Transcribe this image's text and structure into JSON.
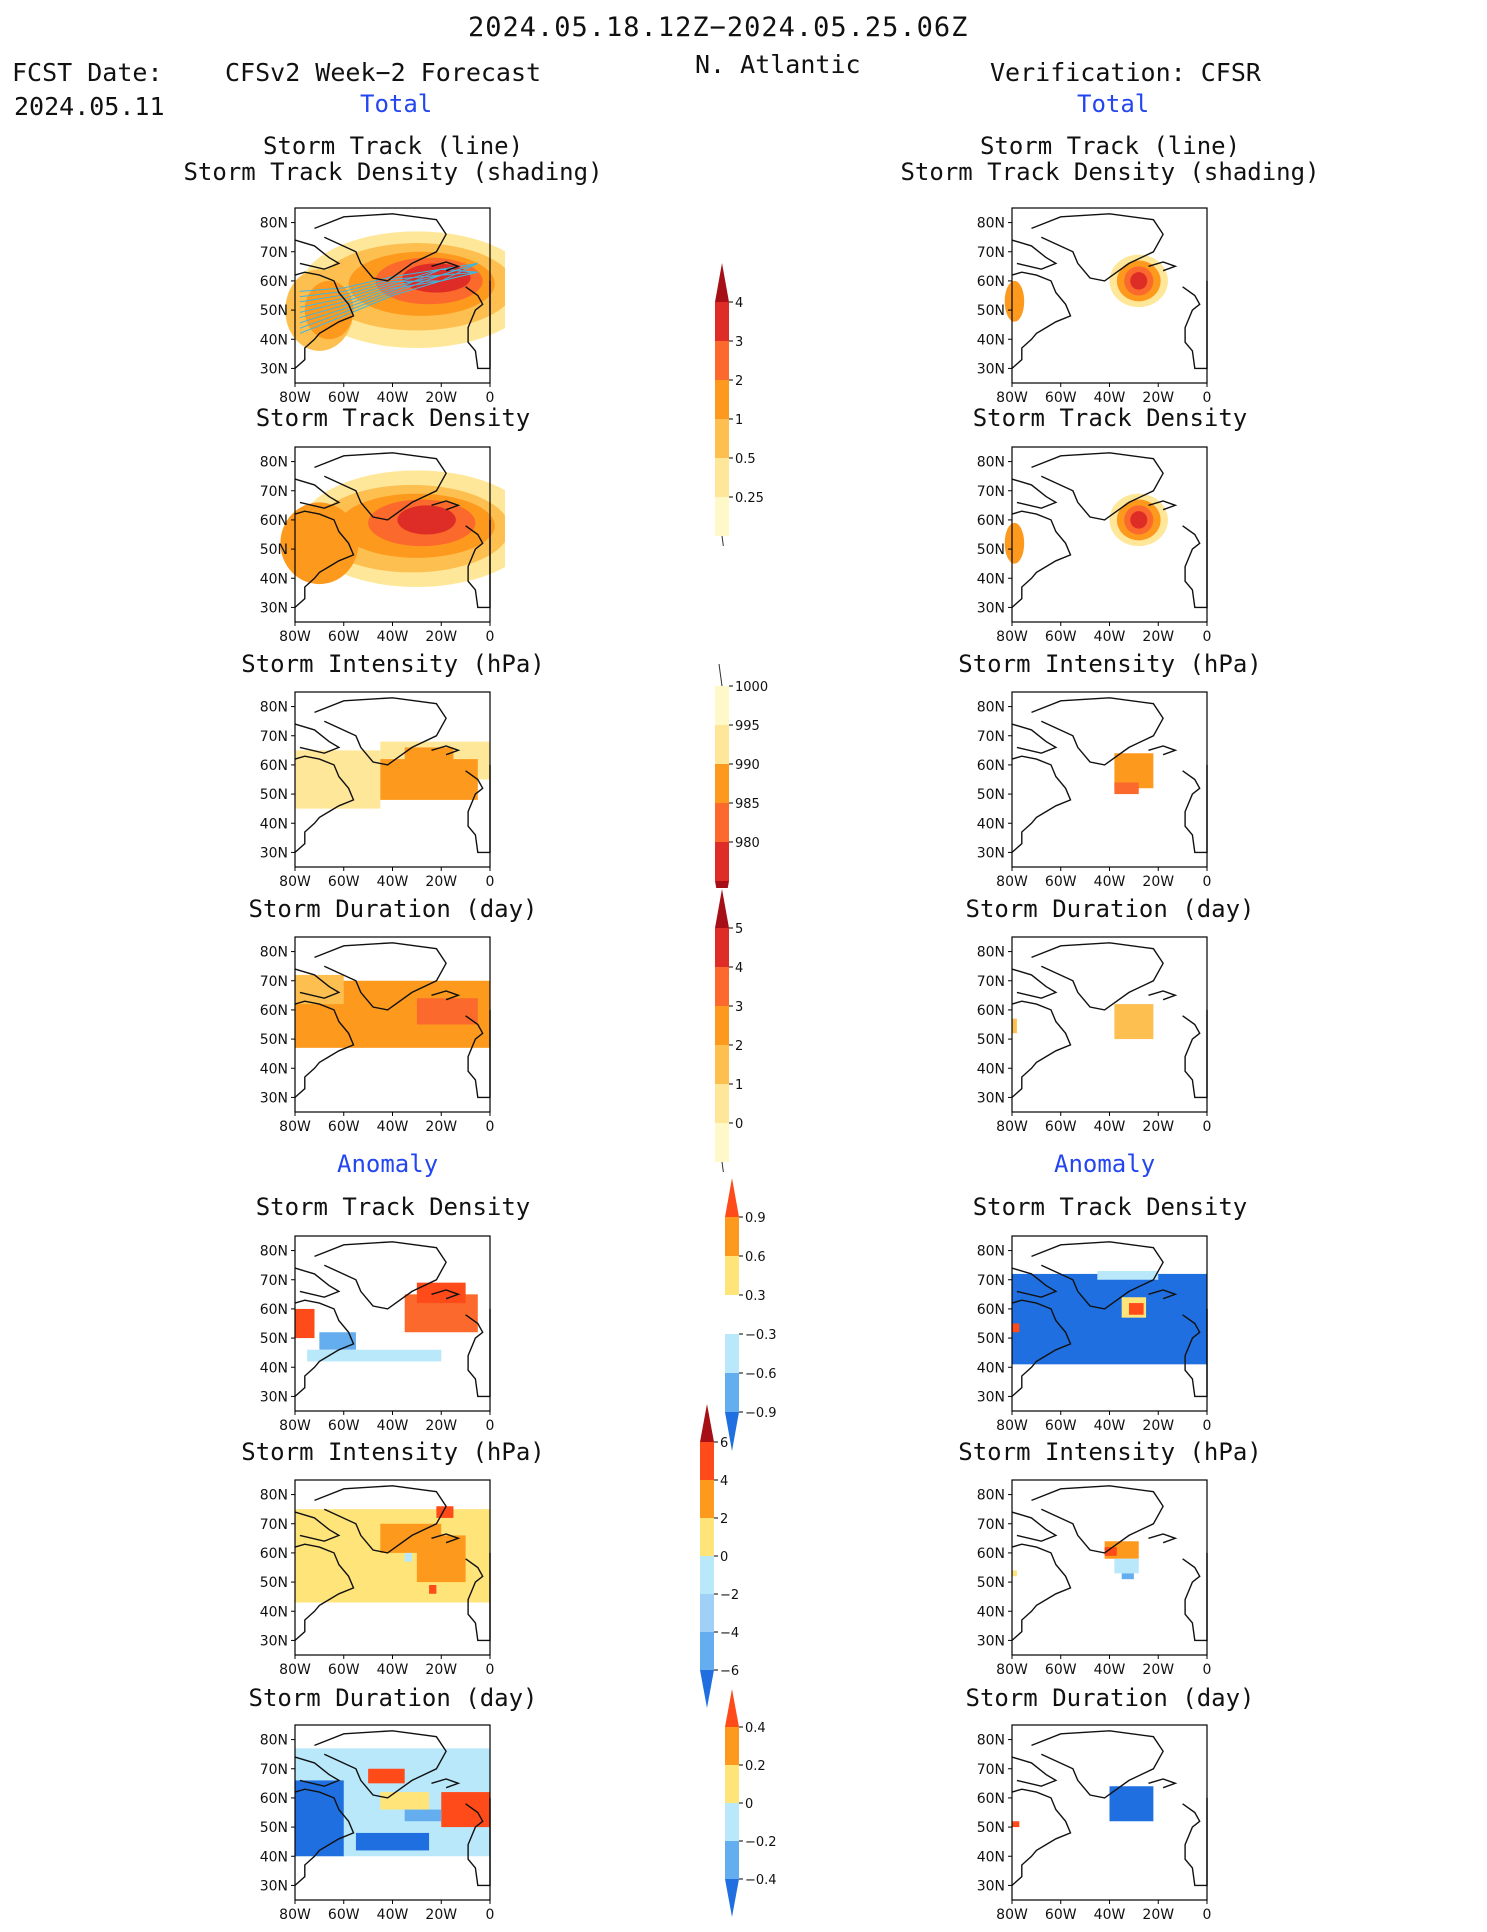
{
  "header": {
    "date_range": "2024.05.18.12Z−2024.05.25.06Z",
    "fcst_label": "FCST Date:",
    "fcst_date": "2024.05.11",
    "model_title": "CFSv2 Week−2 Forecast",
    "region": "N. Atlantic",
    "verification_title": "Verification: CFSR"
  },
  "sections": {
    "total_left": "Total",
    "total_right": "Total",
    "anomaly_left": "Anomaly",
    "anomaly_right": "Anomaly"
  },
  "panels": {
    "track_line": "Storm Track (line)",
    "track_shading": "Storm Track Density (shading)",
    "track_density": "Storm Track Density",
    "intensity": "Storm Intensity (hPa)",
    "duration": "Storm Duration (day)"
  },
  "axes": {
    "lon_ticks": [
      "80W",
      "60W",
      "40W",
      "20W",
      "0"
    ],
    "lat_ticks": [
      "80N",
      "70N",
      "60N",
      "50N",
      "40N",
      "30N"
    ]
  },
  "colorbars": {
    "density": {
      "labels": [
        "4",
        "3",
        "2",
        "1",
        "0.5",
        "0.25"
      ],
      "colors": [
        "#a50f15",
        "#de2d26",
        "#fb6a2c",
        "#fd9a1e",
        "#fdc050",
        "#ffe79a",
        "#fff8c8"
      ]
    },
    "intensity": {
      "labels": [
        "1000",
        "995",
        "990",
        "985",
        "980"
      ],
      "colors": [
        "#fff8c8",
        "#ffe79a",
        "#fd9a1e",
        "#fb6a2c",
        "#de2d26",
        "#a50f15"
      ]
    },
    "duration": {
      "labels": [
        "5",
        "4",
        "3",
        "2",
        "1",
        "0"
      ],
      "colors": [
        "#a50f15",
        "#de2d26",
        "#fb6a2c",
        "#fd9a1e",
        "#fdc050",
        "#ffe79a",
        "#fff8c8"
      ]
    },
    "anom_density": {
      "labels": [
        "0.9",
        "0.6",
        "0.3",
        "−0.3",
        "−0.6",
        "−0.9"
      ],
      "colors": [
        "#ff4a1a",
        "#fd9a1e",
        "#ffe47a",
        "#ffffff",
        "#b9e8fb",
        "#64aef0",
        "#1f6fe0"
      ]
    },
    "anom_intensity": {
      "labels": [
        "6",
        "4",
        "2",
        "0",
        "−2",
        "−4",
        "−6"
      ],
      "colors": [
        "#a50f15",
        "#ff4a1a",
        "#fd9a1e",
        "#ffe47a",
        "#b9e8fb",
        "#9fd0f7",
        "#64aef0",
        "#1f6fe0"
      ]
    },
    "anom_duration": {
      "labels": [
        "0.4",
        "0.2",
        "0",
        "−0.2",
        "−0.4"
      ],
      "colors": [
        "#ff4a1a",
        "#fd9a1e",
        "#ffe47a",
        "#b9e8fb",
        "#64aef0",
        "#1f6fe0"
      ]
    }
  }
}
